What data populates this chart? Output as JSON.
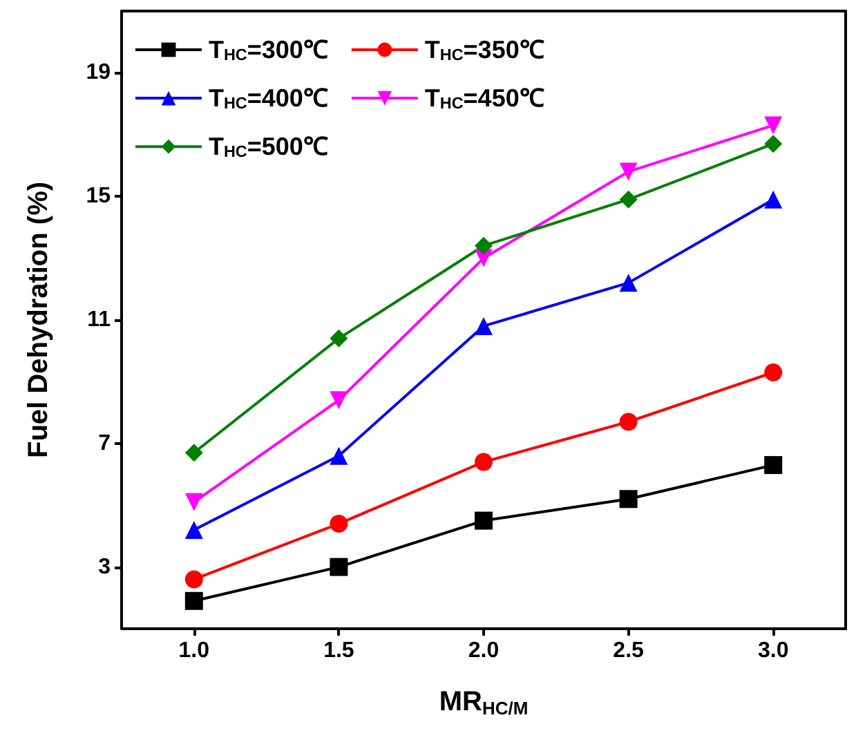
{
  "chart_data": {
    "type": "line",
    "xlabel": "MR$_{HC/M}$",
    "ylabel": "Fuel Dehydration (%)",
    "x": [
      1.0,
      1.5,
      2.0,
      2.5,
      3.0
    ],
    "xlim": [
      0.75,
      3.25
    ],
    "xticks": [
      {
        "value": 1,
        "label": "1.0"
      },
      {
        "value": 1.5,
        "label": "1.5"
      },
      {
        "value": 2,
        "label": "2.0"
      },
      {
        "value": 2.5,
        "label": "2.5"
      },
      {
        "value": 3,
        "label": "3.0"
      }
    ],
    "ylim": [
      1,
      21
    ],
    "yticks": [
      3,
      7,
      11,
      15,
      19
    ],
    "grid": false,
    "legend": "top left",
    "line_style": "solid",
    "series": [
      {
        "name": "T$_{HC}$=300℃",
        "color": "#000000",
        "marker": "square",
        "values": [
          1.9,
          3.0,
          4.5,
          5.2,
          6.3
        ]
      },
      {
        "name": "T$_{HC}$=350℃",
        "color": "#ff0000",
        "marker": "circle",
        "values": [
          2.6,
          4.4,
          6.4,
          7.7,
          9.3
        ]
      },
      {
        "name": "T$_{HC}$=400℃",
        "color": "#0000ff",
        "marker": "triangle",
        "values": [
          4.2,
          6.6,
          10.8,
          12.2,
          14.9
        ]
      },
      {
        "name": "T$_{HC}$=450℃",
        "color": "#ff00ff",
        "marker": "triangle-down",
        "values": [
          5.1,
          8.4,
          13.0,
          15.8,
          17.3
        ]
      },
      {
        "name": "T$_{HC}$=500℃",
        "color": "#008000",
        "marker": "diamond",
        "values": [
          6.7,
          10.4,
          13.4,
          14.9,
          16.7
        ]
      }
    ]
  }
}
